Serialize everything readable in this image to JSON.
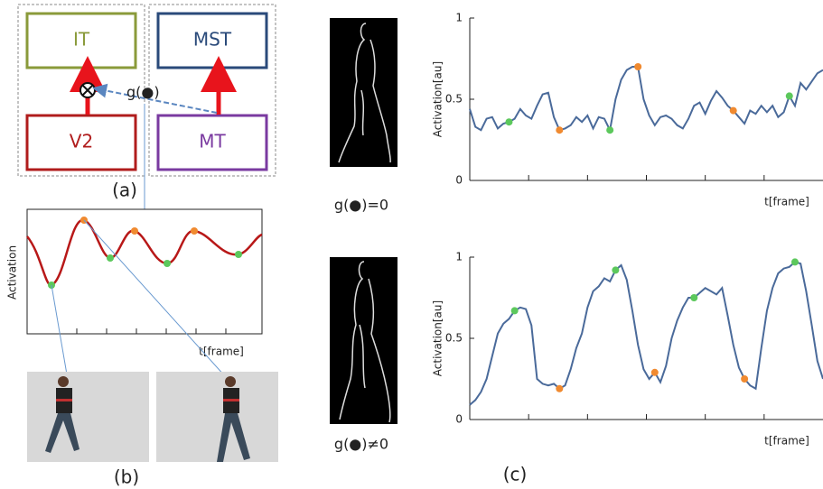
{
  "diagram": {
    "nodes": [
      "IT",
      "MST",
      "V2",
      "MT"
    ],
    "edge_label": "g(●)",
    "caption": "(a)"
  },
  "panel_b": {
    "y_label": "Activation",
    "x_label": "t[frame]",
    "caption": "(b)"
  },
  "panel_c": {
    "labels": [
      "g(●)=0",
      "g(●)≠0"
    ],
    "caption": "(c)"
  },
  "chart_data": [
    {
      "type": "line",
      "y_label": "Activation[au]",
      "x_label": "t[frame]",
      "color": "#4a6a9a",
      "xlim": [
        0,
        63
      ],
      "ylim": [
        0,
        1
      ],
      "yticks": [
        0,
        0.5,
        1
      ],
      "values": [
        0.44,
        0.33,
        0.31,
        0.38,
        0.39,
        0.32,
        0.35,
        0.36,
        0.38,
        0.44,
        0.4,
        0.38,
        0.46,
        0.53,
        0.54,
        0.39,
        0.31,
        0.32,
        0.34,
        0.39,
        0.36,
        0.4,
        0.32,
        0.39,
        0.38,
        0.31,
        0.5,
        0.62,
        0.68,
        0.7,
        0.7,
        0.5,
        0.4,
        0.34,
        0.39,
        0.4,
        0.38,
        0.34,
        0.32,
        0.38,
        0.46,
        0.48,
        0.41,
        0.49,
        0.55,
        0.51,
        0.46,
        0.43,
        0.39,
        0.35,
        0.43,
        0.41,
        0.46,
        0.42,
        0.46,
        0.39,
        0.42,
        0.52,
        0.46,
        0.6,
        0.56,
        0.61,
        0.66,
        0.68
      ],
      "markers": [
        {
          "index": 7,
          "color": "#5cc85c"
        },
        {
          "index": 16,
          "color": "#f08a30"
        },
        {
          "index": 25,
          "color": "#5cc85c"
        },
        {
          "index": 30,
          "color": "#f08a30"
        },
        {
          "index": 47,
          "color": "#f08a30"
        },
        {
          "index": 57,
          "color": "#5cc85c"
        }
      ]
    },
    {
      "type": "line",
      "y_label": "Activation[au]",
      "x_label": "t[frame]",
      "color": "#4a6a9a",
      "xlim": [
        0,
        63
      ],
      "ylim": [
        0,
        1
      ],
      "yticks": [
        0,
        0.5,
        1
      ],
      "values": [
        0.09,
        0.12,
        0.17,
        0.25,
        0.39,
        0.53,
        0.59,
        0.62,
        0.67,
        0.69,
        0.68,
        0.58,
        0.25,
        0.22,
        0.21,
        0.22,
        0.19,
        0.21,
        0.31,
        0.44,
        0.53,
        0.69,
        0.79,
        0.82,
        0.87,
        0.85,
        0.92,
        0.95,
        0.86,
        0.67,
        0.46,
        0.31,
        0.25,
        0.29,
        0.23,
        0.33,
        0.5,
        0.61,
        0.69,
        0.75,
        0.75,
        0.78,
        0.81,
        0.79,
        0.77,
        0.81,
        0.64,
        0.46,
        0.32,
        0.25,
        0.21,
        0.19,
        0.44,
        0.67,
        0.81,
        0.9,
        0.93,
        0.94,
        0.97,
        0.96,
        0.79,
        0.58,
        0.36,
        0.25
      ],
      "markers": [
        {
          "index": 8,
          "color": "#5cc85c"
        },
        {
          "index": 16,
          "color": "#f08a30"
        },
        {
          "index": 26,
          "color": "#5cc85c"
        },
        {
          "index": 33,
          "color": "#f08a30"
        },
        {
          "index": 40,
          "color": "#5cc85c"
        },
        {
          "index": 49,
          "color": "#f08a30"
        },
        {
          "index": 58,
          "color": "#5cc85c"
        }
      ]
    }
  ]
}
